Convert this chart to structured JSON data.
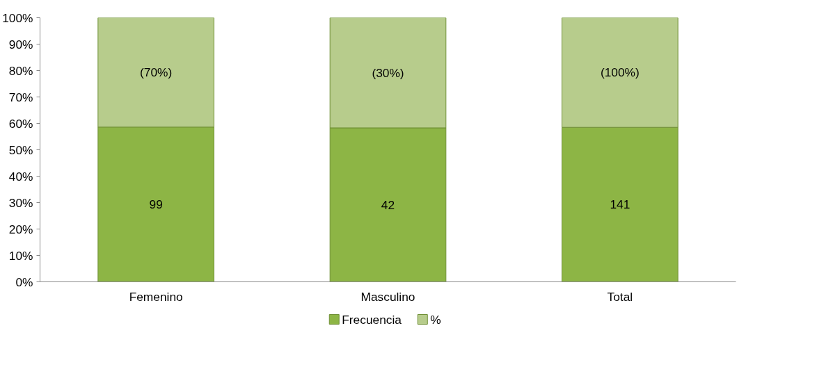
{
  "chart_data": {
    "type": "bar",
    "stacked": true,
    "categories": [
      "Femenino",
      "Masculino",
      "Total"
    ],
    "series": [
      {
        "name": "Frecuencia",
        "color": "#8db545",
        "values": [
          58.6,
          58.3,
          58.5
        ]
      },
      {
        "name": "%",
        "color": "#b7cc8c",
        "values": [
          41.4,
          41.7,
          41.5
        ]
      }
    ],
    "annotations": [
      "99",
      "42",
      "141",
      "(70%)",
      "(30%)",
      "(100%)"
    ],
    "ylim": [
      0,
      100
    ],
    "yticks": [
      {
        "value": 0,
        "label": "0%"
      },
      {
        "value": 10,
        "label": "10%"
      },
      {
        "value": 20,
        "label": "20%"
      },
      {
        "value": 30,
        "label": "30%"
      },
      {
        "value": 40,
        "label": "40%"
      },
      {
        "value": 50,
        "label": "50%"
      },
      {
        "value": 60,
        "label": "60%"
      },
      {
        "value": 70,
        "label": "70%"
      },
      {
        "value": 80,
        "label": "80%"
      },
      {
        "value": 90,
        "label": "90%"
      },
      {
        "value": 100,
        "label": "100%"
      }
    ],
    "grid": false,
    "legend": "bottom"
  }
}
